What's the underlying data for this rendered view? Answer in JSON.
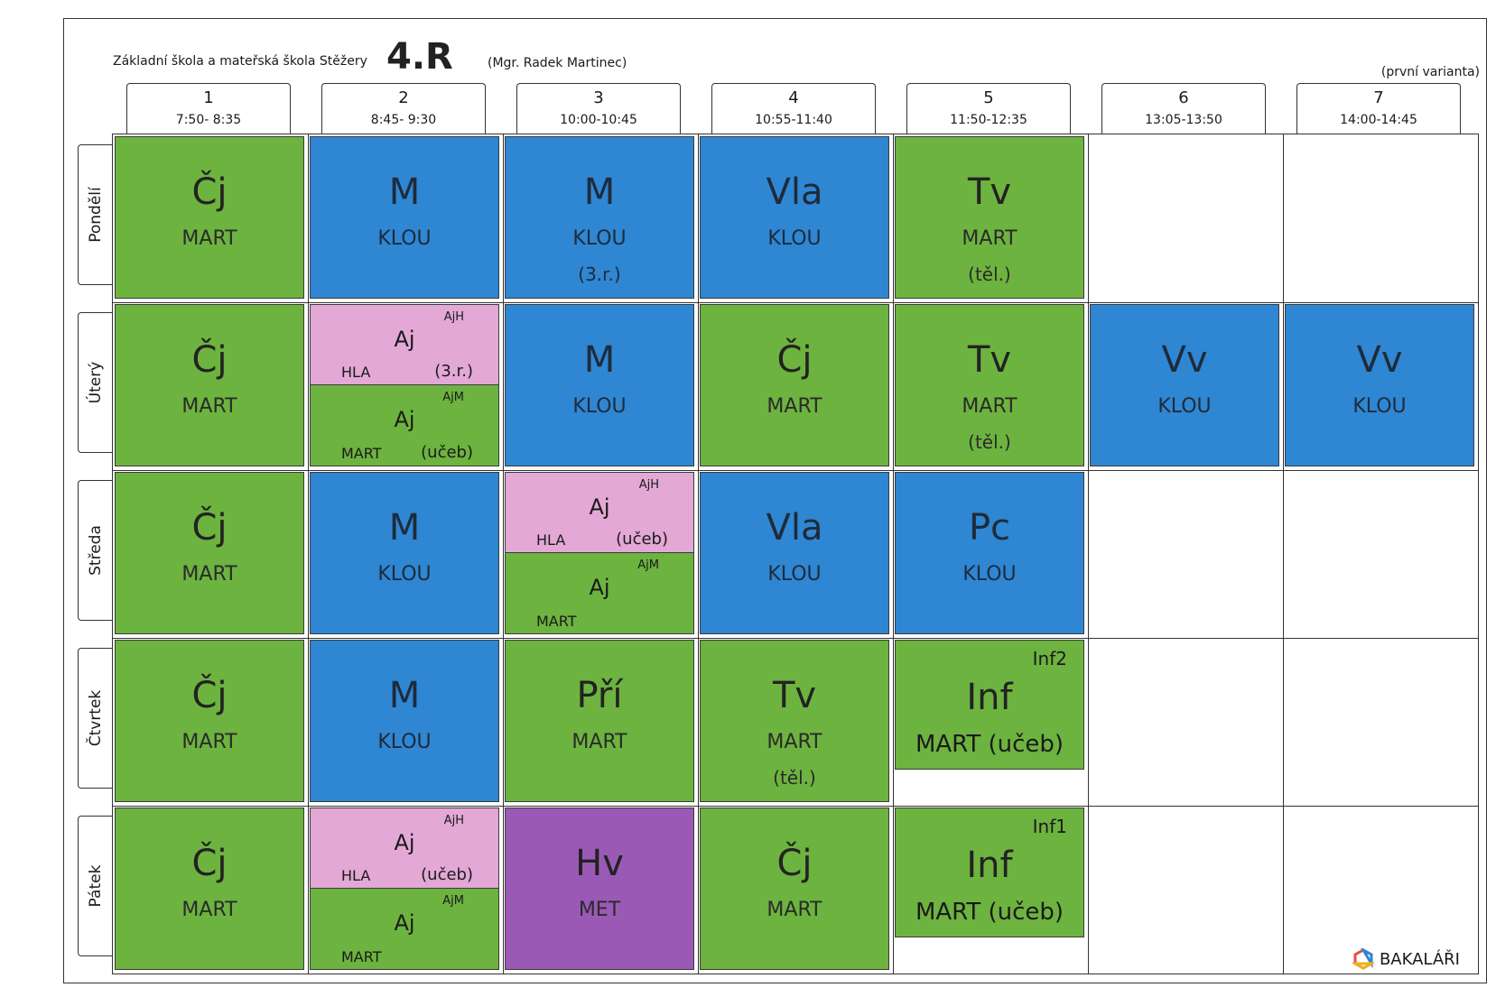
{
  "header": {
    "school": "Základní škola a mateřská škola Stěžery",
    "class_name": "4.R",
    "teacher": "(Mgr. Radek Martinec)",
    "variant": "(první varianta)"
  },
  "periods": [
    {
      "num": "1",
      "time": "7:50- 8:35"
    },
    {
      "num": "2",
      "time": "8:45- 9:30"
    },
    {
      "num": "3",
      "time": "10:00-10:45"
    },
    {
      "num": "4",
      "time": "10:55-11:40"
    },
    {
      "num": "5",
      "time": "11:50-12:35"
    },
    {
      "num": "6",
      "time": "13:05-13:50"
    },
    {
      "num": "7",
      "time": "14:00-14:45"
    }
  ],
  "days": [
    "Pondělí",
    "Úterý",
    "Středa",
    "Čtvrtek",
    "Pátek"
  ],
  "lessons": {
    "mon": [
      {
        "subject": "Čj",
        "teacher": "MART",
        "room": ""
      },
      {
        "subject": "M",
        "teacher": "KLOU",
        "room": ""
      },
      {
        "subject": "M",
        "teacher": "KLOU",
        "room": "(3.r.)"
      },
      {
        "subject": "Vla",
        "teacher": "KLOU",
        "room": ""
      },
      {
        "subject": "Tv",
        "teacher": "MART",
        "room": "(těl.)"
      }
    ],
    "tue": [
      {
        "subject": "Čj",
        "teacher": "MART",
        "room": ""
      },
      {
        "split": true,
        "top": {
          "group": "AjH",
          "subject": "Aj",
          "teacher": "HLA",
          "room": "(3.r.)"
        },
        "bottom": {
          "group": "AjM",
          "subject": "Aj",
          "teacher": "MART",
          "room": "(učeb)"
        }
      },
      {
        "subject": "M",
        "teacher": "KLOU",
        "room": ""
      },
      {
        "subject": "Čj",
        "teacher": "MART",
        "room": ""
      },
      {
        "subject": "Tv",
        "teacher": "MART",
        "room": "(těl.)"
      },
      {
        "subject": "Vv",
        "teacher": "KLOU",
        "room": ""
      },
      {
        "subject": "Vv",
        "teacher": "KLOU",
        "room": ""
      }
    ],
    "wed": [
      {
        "subject": "Čj",
        "teacher": "MART",
        "room": ""
      },
      {
        "subject": "M",
        "teacher": "KLOU",
        "room": ""
      },
      {
        "split": true,
        "top": {
          "group": "AjH",
          "subject": "Aj",
          "teacher": "HLA",
          "room": "(učeb)"
        },
        "bottom": {
          "group": "AjM",
          "subject": "Aj",
          "teacher": "MART",
          "room": ""
        }
      },
      {
        "subject": "Vla",
        "teacher": "KLOU",
        "room": ""
      },
      {
        "subject": "Pc",
        "teacher": "KLOU",
        "room": ""
      }
    ],
    "thu": [
      {
        "subject": "Čj",
        "teacher": "MART",
        "room": ""
      },
      {
        "subject": "M",
        "teacher": "KLOU",
        "room": ""
      },
      {
        "subject": "Pří",
        "teacher": "MART",
        "room": ""
      },
      {
        "subject": "Tv",
        "teacher": "MART",
        "room": "(těl.)"
      },
      {
        "group": "Inf2",
        "subject": "Inf",
        "teacher_room": "MART  (učeb)"
      }
    ],
    "fri": [
      {
        "subject": "Čj",
        "teacher": "MART",
        "room": ""
      },
      {
        "split": true,
        "top": {
          "group": "AjH",
          "subject": "Aj",
          "teacher": "HLA",
          "room": "(učeb)"
        },
        "bottom": {
          "group": "AjM",
          "subject": "Aj",
          "teacher": "MART",
          "room": ""
        }
      },
      {
        "subject": "Hv",
        "teacher": "MET",
        "room": ""
      },
      {
        "subject": "Čj",
        "teacher": "MART",
        "room": ""
      },
      {
        "group": "Inf1",
        "subject": "Inf",
        "teacher_room": "MART  (učeb)"
      }
    ]
  },
  "colors": {
    "green": "#6db33f",
    "blue": "#2f86d2",
    "pink": "#e3a8d6",
    "purple": "#9b59b6"
  },
  "logo": {
    "icon": "bakalari-logo-icon",
    "text": "BAKALÁŘI"
  }
}
